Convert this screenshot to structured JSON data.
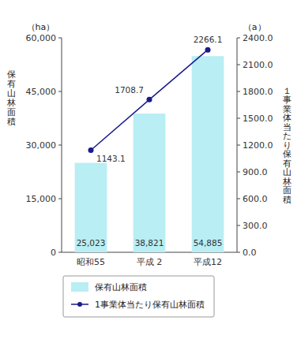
{
  "chart_data": {
    "type": "bar",
    "categories": [
      "昭和55",
      "平成  2",
      "平成12"
    ],
    "series": [
      {
        "name": "保有山林面積",
        "type": "bar",
        "color": "#b8eef4",
        "values": [
          25023,
          38821,
          54885
        ],
        "value_labels": [
          "25,023",
          "38,821",
          "54,885"
        ]
      },
      {
        "name": "1事業体当たり保有山林面積",
        "type": "line",
        "axis": "y2",
        "color": "#1a1a8c",
        "marker": "circle",
        "values": [
          1143.1,
          1708.7,
          2266.1
        ]
      }
    ],
    "ylabel": "保\n有\n山\n林\n面\n積",
    "ylabel_unit": "（ha）",
    "y2label": "１\n事\n業\n体\n当\nた\nり\n保\n有\n山\n林\n面\n積",
    "y2label_unit": "（a）",
    "ylim": [
      0,
      60000
    ],
    "yticks": [
      0,
      {
        "value": 15000,
        "label": "15,000"
      },
      {
        "value": 30000,
        "label": "30,000"
      },
      {
        "value": 45000,
        "label": "45,000"
      },
      {
        "value": 60000,
        "label": "60,000"
      }
    ],
    "y2lim": [
      0.0,
      2400.0
    ],
    "y2ticks": [
      {
        "value": 0.0,
        "label": "0.0"
      },
      {
        "value": 300.0,
        "label": "300.0"
      },
      {
        "value": 600.0,
        "label": "600.0"
      },
      {
        "value": 900.0,
        "label": "900.0"
      },
      {
        "value": 1200.0,
        "label": "1200.0"
      },
      {
        "value": 1500.0,
        "label": "1500.0"
      },
      {
        "value": 1800.0,
        "label": "1800.0"
      },
      {
        "value": 2100.0,
        "label": "2100.0"
      },
      {
        "value": 2400.0,
        "label": "2400.0"
      }
    ],
    "data_labels": true,
    "grid": false,
    "legend": "bottom"
  }
}
